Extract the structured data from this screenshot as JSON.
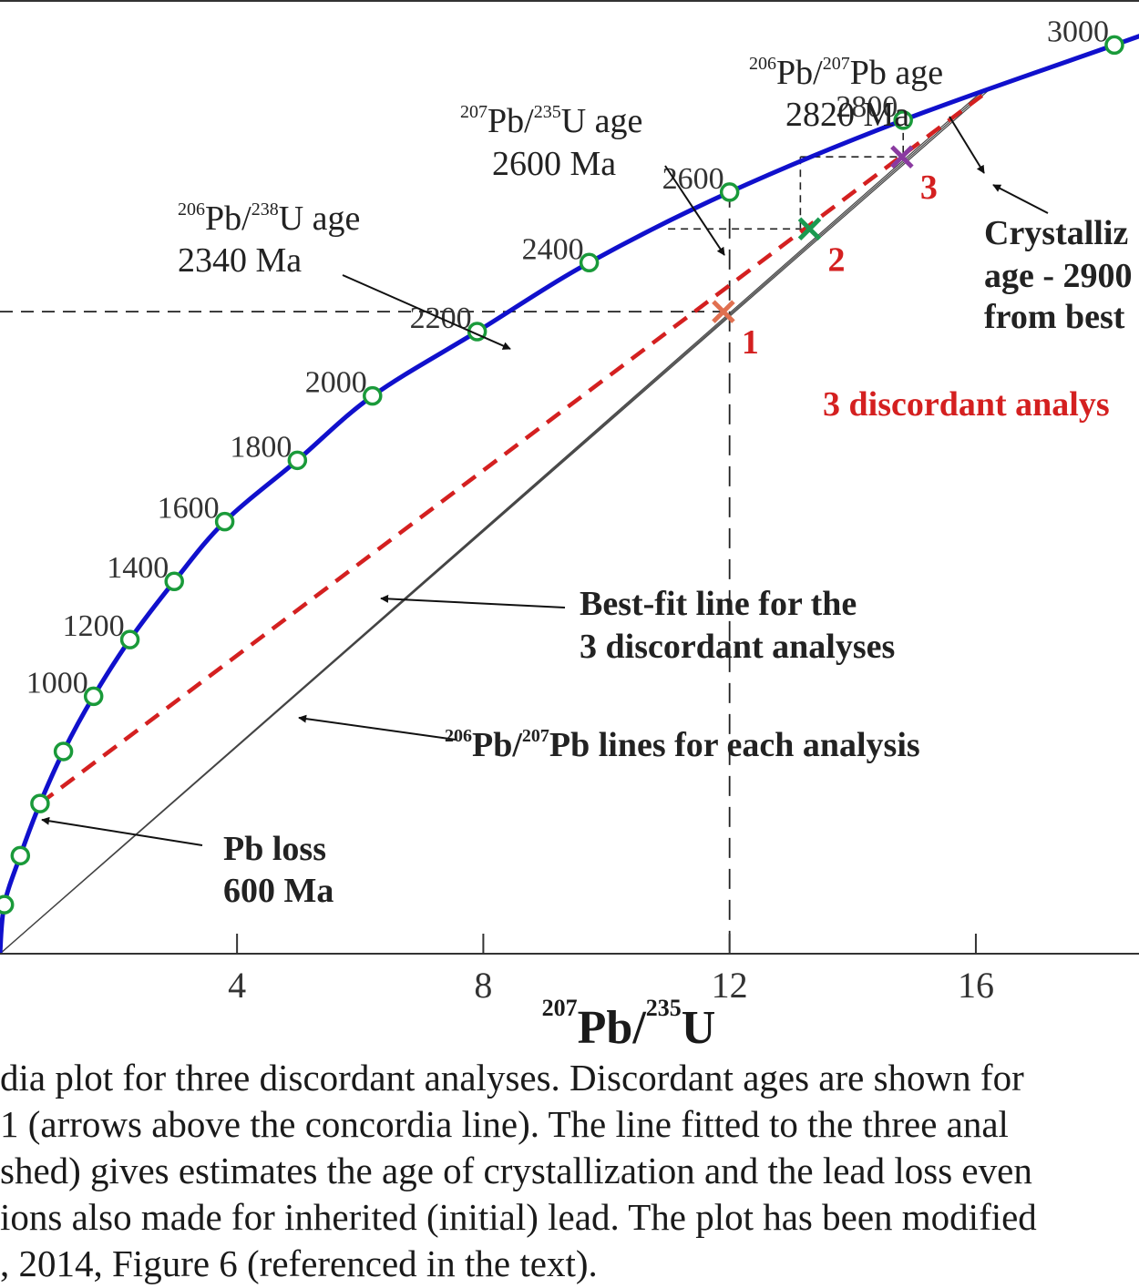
{
  "chart_data": {
    "type": "line",
    "xlabel": {
      "sup1": "207",
      "main1": "Pb/",
      "sup2": "235",
      "main2": "U"
    },
    "x_ticks": [
      "4",
      "8",
      "12",
      "16"
    ],
    "x_tick_values": [
      4,
      8,
      12,
      16
    ],
    "xlim": [
      0.15,
      18.65
    ],
    "ylim": [
      0.0,
      0.62
    ],
    "series": [
      {
        "type": "concordia",
        "color": "#1010cc",
        "points": [
          {
            "age": 200,
            "x": 0.22,
            "y": 0.032
          },
          {
            "age": 400,
            "x": 0.48,
            "y": 0.064
          },
          {
            "age": 600,
            "x": 0.8,
            "y": 0.098
          },
          {
            "age": 800,
            "x": 1.18,
            "y": 0.132
          },
          {
            "age": 1000,
            "x": 1.67,
            "y": 0.168,
            "label": "1000"
          },
          {
            "age": 1200,
            "x": 2.26,
            "y": 0.205,
            "label": "1200"
          },
          {
            "age": 1400,
            "x": 2.98,
            "y": 0.243,
            "label": "1400"
          },
          {
            "age": 1600,
            "x": 3.8,
            "y": 0.282,
            "label": "1600"
          },
          {
            "age": 1800,
            "x": 4.98,
            "y": 0.322,
            "label": "1800"
          },
          {
            "age": 2000,
            "x": 6.2,
            "y": 0.364,
            "label": "2000"
          },
          {
            "age": 2200,
            "x": 7.9,
            "y": 0.406,
            "label": "2200"
          },
          {
            "age": 2400,
            "x": 9.72,
            "y": 0.451,
            "label": "2400"
          },
          {
            "age": 2600,
            "x": 12.0,
            "y": 0.497,
            "label": "2600"
          },
          {
            "age": 2800,
            "x": 14.82,
            "y": 0.544,
            "label": "2800"
          },
          {
            "age": 3000,
            "x": 18.25,
            "y": 0.593,
            "label": "3000"
          }
        ]
      },
      {
        "type": "best-fit-discordia",
        "color": "#d42020",
        "from": {
          "x": 0.8,
          "y": 0.098
        },
        "to": {
          "x": 16.1,
          "y": 0.56
        }
      }
    ],
    "discordant_analyses": [
      {
        "label": "1",
        "x": 11.9,
        "y": 0.419,
        "color": "#e07050"
      },
      {
        "label": "2",
        "x": 13.3,
        "y": 0.473,
        "color": "#1a9a50"
      },
      {
        "label": "3",
        "x": 14.8,
        "y": 0.52,
        "color": "#8a3aa0"
      }
    ],
    "pb207_206_lines": [
      {
        "from": {
          "x": 0.15,
          "y": 0.0
        },
        "to": {
          "x": 16.05,
          "y": 0.561
        }
      },
      {
        "from": {
          "x": 0.15,
          "y": 0.0
        },
        "to": {
          "x": 16.15,
          "y": 0.563
        }
      },
      {
        "from": {
          "x": 0.15,
          "y": 0.0
        },
        "to": {
          "x": 16.25,
          "y": 0.565
        }
      }
    ],
    "annotations": {
      "pb206_238": {
        "sup1": "206",
        "t1": "Pb/",
        "sup2": "238",
        "t2": "U age",
        "line2": "2340 Ma"
      },
      "pb207_235": {
        "sup1": "207",
        "t1": "Pb/",
        "sup2": "235",
        "t2": "U age",
        "line2": "2600 Ma"
      },
      "pb206_207": {
        "sup1": "206",
        "t1": "Pb/",
        "sup2": "207",
        "t2": "Pb age",
        "line2": "2820 Ma"
      },
      "crystallization": [
        "Crystalliz",
        "age - 2900",
        "from best"
      ],
      "discordant": "3 discordant analys",
      "bestfit": [
        "Best-fit line for the",
        "3 discordant analyses"
      ],
      "pblines": {
        "sup1": "206",
        "t1": "Pb/",
        "sup2": "207",
        "t2": "Pb lines for each analysis"
      },
      "pbloss": [
        "Pb loss",
        "600 Ma"
      ]
    }
  },
  "caption": {
    "lines": [
      "dia plot for three discordant analyses. Discordant ages are shown for",
      " 1 (arrows above the concordia line).  The line fitted to the three anal",
      "shed) gives estimates the age of crystallization and the lead loss even",
      "ions also made for inherited (initial) lead. The plot has been modified",
      ", 2014, Figure 6 (referenced in the text)."
    ]
  }
}
